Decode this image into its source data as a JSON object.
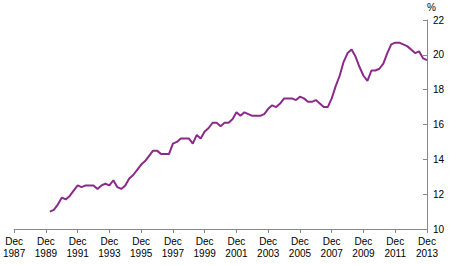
{
  "chart_data": {
    "type": "line",
    "ylabel": "%",
    "categories": [
      "Dec 1987",
      null,
      null,
      null,
      null,
      null,
      null,
      null,
      "Dec 1989",
      null,
      null,
      null,
      null,
      null,
      null,
      null,
      "Dec 1991",
      null,
      null,
      null,
      null,
      null,
      null,
      null,
      "Dec 1993",
      null,
      null,
      null,
      null,
      null,
      null,
      null,
      "Dec 1995",
      null,
      null,
      null,
      null,
      null,
      null,
      null,
      "Dec 1997",
      null,
      null,
      null,
      null,
      null,
      null,
      null,
      "Dec 1999",
      null,
      null,
      null,
      null,
      null,
      null,
      null,
      "Dec 2001",
      null,
      null,
      null,
      null,
      null,
      null,
      null,
      "Dec 2003",
      null,
      null,
      null,
      null,
      null,
      null,
      null,
      "Dec 2005",
      null,
      null,
      null,
      null,
      null,
      null,
      null,
      "Dec 2007",
      null,
      null,
      null,
      null,
      null,
      null,
      null,
      "Dec 2009",
      null,
      null,
      null,
      null,
      null,
      null,
      null,
      "Dec 2011",
      null,
      null,
      null,
      null,
      null,
      null,
      null,
      "Dec 2013"
    ],
    "values": [
      null,
      null,
      null,
      null,
      null,
      null,
      null,
      null,
      null,
      11.0,
      11.1,
      11.4,
      11.8,
      11.7,
      11.9,
      12.2,
      12.5,
      12.4,
      12.5,
      12.5,
      12.5,
      12.3,
      12.5,
      12.6,
      12.5,
      12.8,
      12.4,
      12.3,
      12.5,
      12.9,
      13.1,
      13.4,
      13.7,
      13.9,
      14.2,
      14.5,
      14.5,
      14.3,
      14.3,
      14.3,
      14.9,
      15.0,
      15.2,
      15.2,
      15.2,
      14.9,
      15.4,
      15.2,
      15.6,
      15.8,
      16.1,
      16.1,
      15.9,
      16.1,
      16.1,
      16.3,
      16.7,
      16.5,
      16.7,
      16.6,
      16.5,
      16.5,
      16.5,
      16.6,
      16.9,
      17.1,
      17.0,
      17.2,
      17.5,
      17.5,
      17.5,
      17.4,
      17.6,
      17.5,
      17.3,
      17.3,
      17.4,
      17.2,
      17.0,
      17.0,
      17.5,
      18.2,
      18.8,
      19.6,
      20.1,
      20.3,
      19.9,
      19.3,
      18.8,
      18.5,
      19.1,
      19.1,
      19.2,
      19.5,
      20.1,
      20.6,
      20.7,
      20.7,
      20.6,
      20.5,
      20.3,
      20.1,
      20.2,
      19.8,
      19.7
    ],
    "color": "#8b2a8b",
    "ylim": [
      10,
      22
    ],
    "yticks": [
      10,
      12,
      14,
      16,
      18,
      20,
      22
    ],
    "grid": false
  }
}
